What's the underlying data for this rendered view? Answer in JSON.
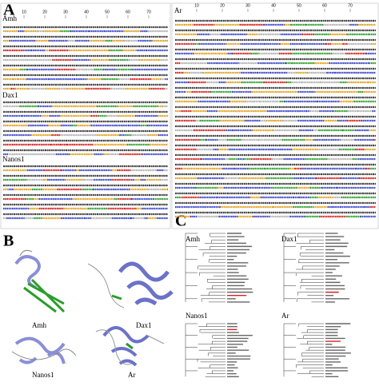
{
  "panels": [
    {
      "label": "A",
      "sections": [
        {
          "name": "Amh",
          "ruler": [
            10,
            20,
            30,
            40,
            50,
            60,
            70
          ]
        },
        {
          "name": "Dax1"
        },
        {
          "name": "Nanos1"
        },
        {
          "name": "Ar",
          "ruler": [
            10,
            20,
            30,
            40,
            50,
            60,
            70
          ]
        }
      ]
    },
    {
      "label": "B",
      "structures": [
        "Amh",
        "Dax1",
        "Nanos1",
        "Ar"
      ]
    },
    {
      "label": "C",
      "trees": [
        "Amh",
        "Dax1",
        "Nanos1",
        "Ar"
      ]
    }
  ]
}
